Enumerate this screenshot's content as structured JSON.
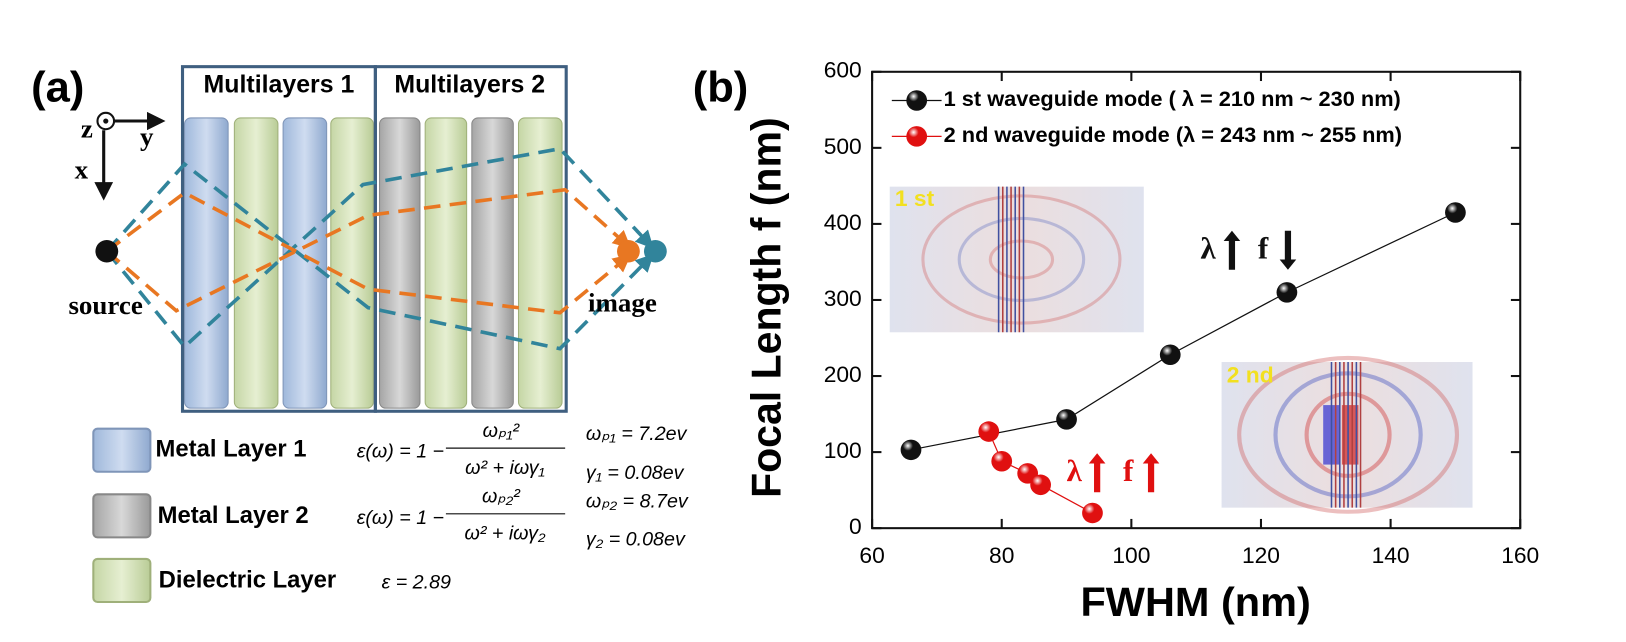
{
  "diagram": {
    "panel_label": "(a)",
    "groups": [
      "Multilayers 1",
      "Multilayers 2"
    ],
    "axes": [
      "z",
      "y",
      "x"
    ],
    "source": "source",
    "image": "image",
    "legend": [
      {
        "label": "Metal Layer 1",
        "eq_left": "ε(ω) = 1 −",
        "eq_num": "ωₚ₁²",
        "eq_den": "ω² + iωγ₁",
        "params": [
          "ωₚ₁ = 7.2ev",
          "γ₁ = 0.08ev"
        ]
      },
      {
        "label": "Metal Layer 2",
        "eq_left": "ε(ω) = 1 −",
        "eq_num": "ωₚ₂²",
        "eq_den": "ω² + iωγ₂",
        "params": [
          "ωₚ₂ = 8.7ev",
          "γ₂ = 0.08ev"
        ]
      },
      {
        "label": "Dielectric Layer",
        "eq_left": "ε = 2.89"
      }
    ]
  },
  "chart_data": {
    "type": "line",
    "panel_label": "(b)",
    "x_label": "FWHM (nm)",
    "y_label": "Focal Length f (nm)",
    "xlim": [
      60,
      160
    ],
    "xticks": [
      60,
      80,
      100,
      120,
      140,
      160
    ],
    "ylim": [
      0,
      600
    ],
    "yticks": [
      0,
      100,
      200,
      300,
      400,
      500,
      600
    ],
    "series": [
      {
        "name": "1 st waveguide mode ( λ = 210 nm ~ 230 nm)",
        "color": "#111111",
        "x": [
          66,
          90,
          106,
          124,
          150
        ],
        "values": [
          103,
          143,
          228,
          310,
          415
        ]
      },
      {
        "name": "2 nd waveguide mode (λ = 243 nm ~ 255 nm)",
        "color": "#e01010",
        "x": [
          78,
          80,
          84,
          86,
          94
        ],
        "values": [
          127,
          88,
          72,
          57,
          20
        ]
      }
    ],
    "insets": [
      "1 st",
      "2 nd"
    ],
    "annotations": [
      "λ",
      "f",
      "λ",
      "f"
    ]
  }
}
